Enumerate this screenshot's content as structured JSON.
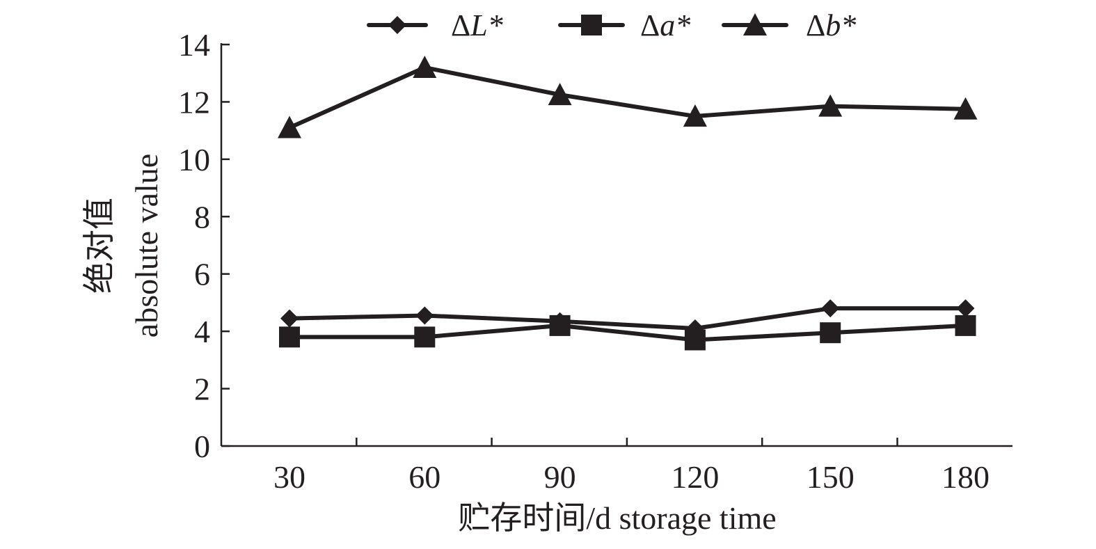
{
  "chart_data": {
    "type": "line",
    "title": "",
    "xlabel": "贮存时间/d storage time",
    "ylabel_cn": "绝对值",
    "ylabel_en": "absolute value",
    "x": [
      30,
      60,
      90,
      120,
      150,
      180
    ],
    "x_tick_labels": [
      "30",
      "60",
      "90",
      "120",
      "150",
      "180"
    ],
    "y_ticks": [
      0,
      2,
      4,
      6,
      8,
      10,
      12,
      14
    ],
    "y_tick_labels": [
      "0",
      "2",
      "4",
      "6",
      "8",
      "10",
      "12",
      "14"
    ],
    "ylim": [
      0,
      14
    ],
    "grid": false,
    "legend_position": "top",
    "line_color": "#231f20",
    "series": [
      {
        "name": "ΔL*",
        "prefix": "Δ",
        "var": "L*",
        "marker": "diamond",
        "values": [
          4.45,
          4.55,
          4.35,
          4.1,
          4.8,
          4.8
        ]
      },
      {
        "name": "Δa*",
        "prefix": "Δ",
        "var": "a*",
        "marker": "square",
        "values": [
          3.8,
          3.8,
          4.2,
          3.7,
          3.95,
          4.2
        ]
      },
      {
        "name": "Δb*",
        "prefix": "Δ",
        "var": "b*",
        "marker": "triangle",
        "values": [
          11.1,
          13.2,
          12.25,
          11.5,
          11.85,
          11.75
        ]
      }
    ]
  }
}
